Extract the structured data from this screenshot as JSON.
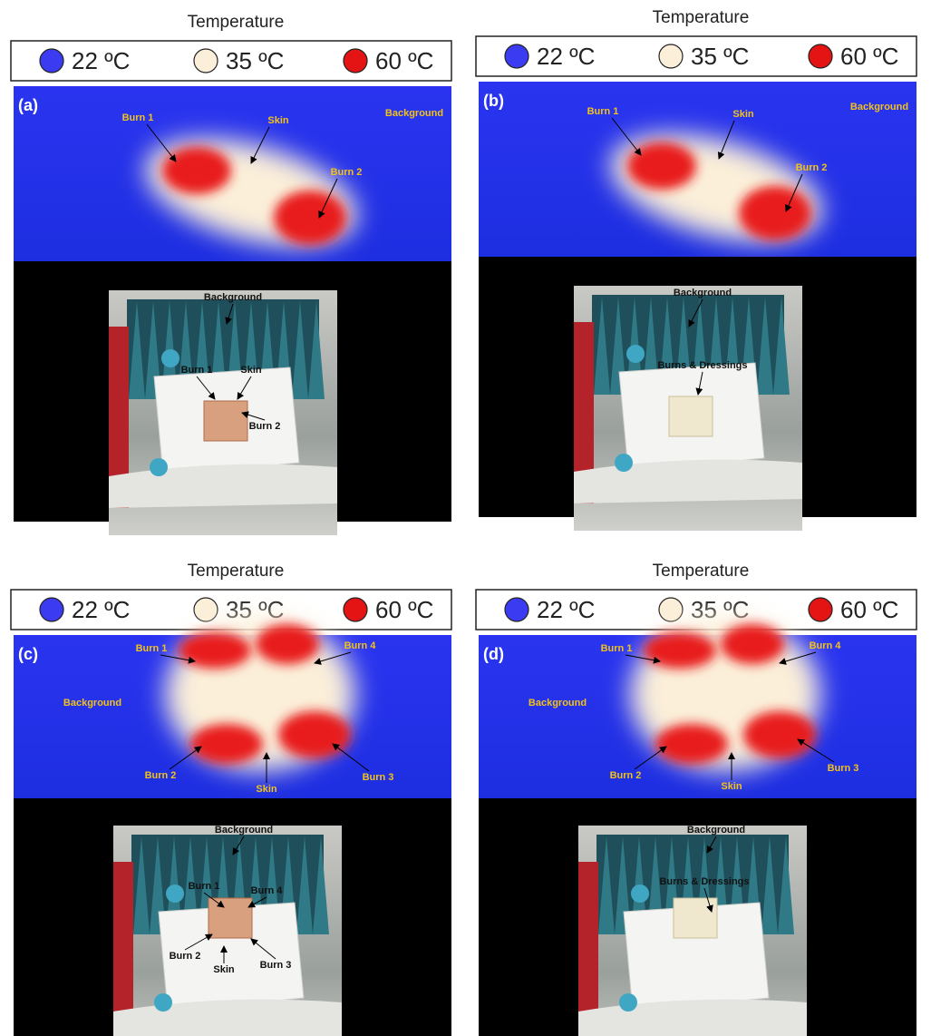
{
  "panels": [
    {
      "label": "(a)",
      "title": "Temperature",
      "legend": [
        {
          "label": "22 ºC",
          "color": "#3b3bf2"
        },
        {
          "label": "35 ºC",
          "color": "#fbefd9"
        },
        {
          "label": "60 ºC",
          "color": "#e41414"
        }
      ],
      "thermal_labels": [
        "Burn 1",
        "Skin",
        "Background",
        "Burn 2"
      ],
      "photo_labels": [
        "Background",
        "Burn 1",
        "Skin",
        "Burn 2"
      ]
    },
    {
      "label": "(b)",
      "title": "Temperature",
      "legend": [
        {
          "label": "22 ºC",
          "color": "#3b3bf2"
        },
        {
          "label": "35 ºC",
          "color": "#fbefd9"
        },
        {
          "label": "60 ºC",
          "color": "#e41414"
        }
      ],
      "thermal_labels": [
        "Burn 1",
        "Skin",
        "Background",
        "Burn 2"
      ],
      "photo_labels": [
        "Background",
        "Burns & Dressings"
      ]
    },
    {
      "label": "(c)",
      "title": "Temperature",
      "legend": [
        {
          "label": "22 ºC",
          "color": "#3b3bf2"
        },
        {
          "label": "35 ºC",
          "color": "#fbefd9"
        },
        {
          "label": "60 ºC",
          "color": "#e41414"
        }
      ],
      "thermal_labels": [
        "Burn 1",
        "Burn 4",
        "Background",
        "Burn 2",
        "Skin",
        "Burn 3"
      ],
      "photo_labels": [
        "Background",
        "Burn 1",
        "Burn 4",
        "Burn 2",
        "Skin",
        "Burn 3"
      ]
    },
    {
      "label": "(d)",
      "title": "Temperature",
      "legend": [
        {
          "label": "22 ºC",
          "color": "#3b3bf2"
        },
        {
          "label": "35 ºC",
          "color": "#fbefd9"
        },
        {
          "label": "60 ºC",
          "color": "#e41414"
        }
      ],
      "thermal_labels": [
        "Burn 1",
        "Burn 4",
        "Background",
        "Burn 2",
        "Skin",
        "Burn 3"
      ],
      "photo_labels": [
        "Background",
        "Burns & Dressings"
      ]
    }
  ]
}
